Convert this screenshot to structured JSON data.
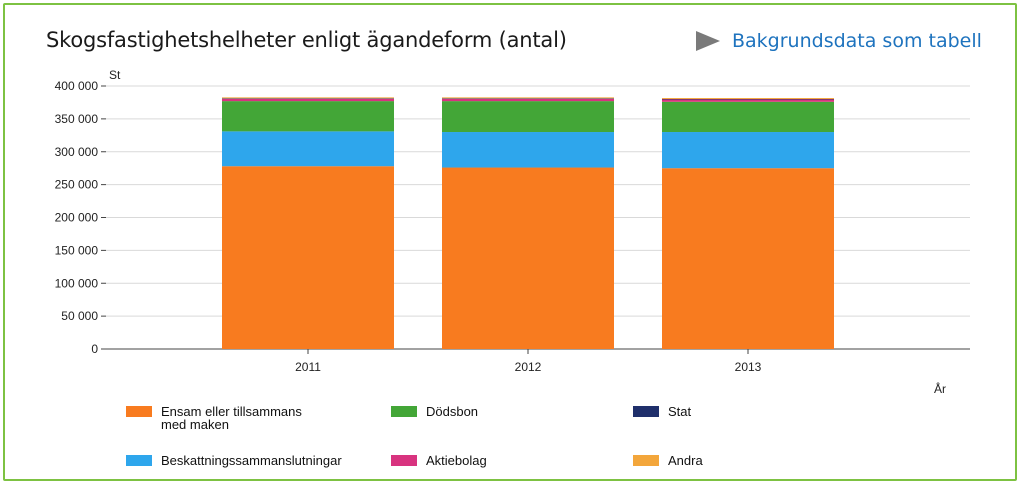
{
  "header": {
    "title": "Skogsfastighetshelheter enligt ägandeform (antal)",
    "table_link": "Bakgrundsdata som tabell"
  },
  "colors": {
    "frame": "#7dc242",
    "link": "#1e73be",
    "grid": "#d9d9d9"
  },
  "chart_data": {
    "type": "bar",
    "stacked": true,
    "title": "Skogsfastighetshelheter enligt ägandeform (antal)",
    "ylabel": "St",
    "xlabel": "År",
    "categories": [
      "2011",
      "2012",
      "2013"
    ],
    "ylim": [
      0,
      400000
    ],
    "yticks": [
      0,
      50000,
      100000,
      150000,
      200000,
      250000,
      300000,
      350000,
      400000
    ],
    "ytick_labels": [
      "0",
      "50 000",
      "100 000",
      "150 000",
      "200 000",
      "250 000",
      "300 000",
      "350 000",
      "400 000"
    ],
    "grid": true,
    "legend_position": "bottom",
    "series": [
      {
        "name": "Ensam eller tillsammans med maken",
        "color": "#f87b1f",
        "values": [
          278000,
          276000,
          275000
        ]
      },
      {
        "name": "Beskattningssammanslutningar",
        "color": "#2ea6ec",
        "values": [
          53000,
          54000,
          55000
        ]
      },
      {
        "name": "Dödsbon",
        "color": "#43a637",
        "values": [
          46000,
          47000,
          46000
        ]
      },
      {
        "name": "Aktiebolag",
        "color": "#d8337f",
        "values": [
          3500,
          3500,
          3500
        ]
      },
      {
        "name": "Stat",
        "color": "#1f2f6b",
        "values": [
          700,
          700,
          700
        ]
      },
      {
        "name": "Andra",
        "color": "#f3a63b",
        "values": [
          1500,
          1500,
          1500
        ]
      }
    ],
    "legend": [
      {
        "name": "Ensam eller tillsammans\nmed maken",
        "color": "#f87b1f"
      },
      {
        "name": "Dödsbon",
        "color": "#43a637"
      },
      {
        "name": "Stat",
        "color": "#1f2f6b"
      },
      {
        "name": "Beskattningssammanslutningar",
        "color": "#2ea6ec"
      },
      {
        "name": "Aktiebolag",
        "color": "#d8337f"
      },
      {
        "name": "Andra",
        "color": "#f3a63b"
      }
    ]
  }
}
